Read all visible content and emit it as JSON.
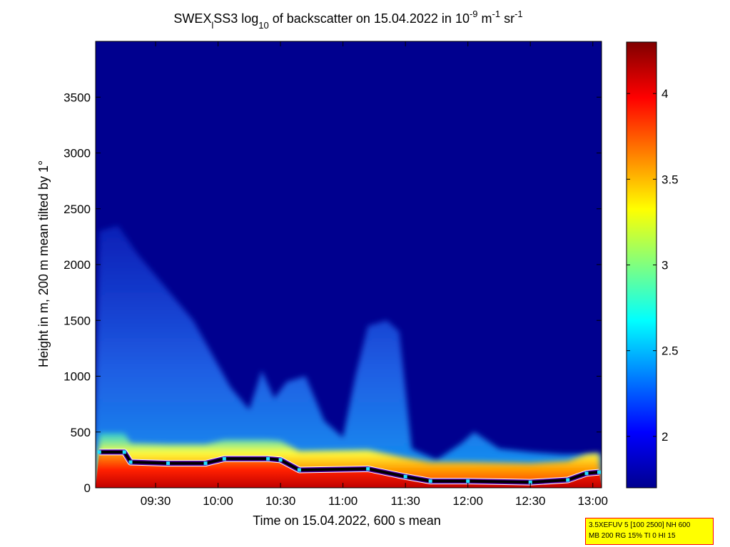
{
  "chart_data": {
    "type": "heatmap",
    "title": {
      "prefix": "SWEX",
      "sub_l": "l",
      "mid": "SS3 log",
      "sub_10": "10",
      "mid2": " of backscatter on 15.04.2022 in 10",
      "sup_9": "-9",
      "unit_m": " m",
      "sup_m": "-1",
      "unit_sr": " sr",
      "sup_sr": "-1"
    },
    "xlabel": "Time on 15.04.2022, 600 s mean",
    "ylabel": "Height in m, 200 m mean tilted by 1°",
    "x_range_hours": [
      9.02,
      13.07
    ],
    "ylim": [
      0,
      4000
    ],
    "x_ticks": [
      {
        "value": 9.5,
        "label": "09:30"
      },
      {
        "value": 10.0,
        "label": "10:00"
      },
      {
        "value": 10.5,
        "label": "10:30"
      },
      {
        "value": 11.0,
        "label": "11:00"
      },
      {
        "value": 11.5,
        "label": "11:30"
      },
      {
        "value": 12.0,
        "label": "12:00"
      },
      {
        "value": 12.5,
        "label": "12:30"
      },
      {
        "value": 13.0,
        "label": "13:00"
      }
    ],
    "y_ticks": [
      {
        "value": 0,
        "label": "0"
      },
      {
        "value": 500,
        "label": "500"
      },
      {
        "value": 1000,
        "label": "1000"
      },
      {
        "value": 1500,
        "label": "1500"
      },
      {
        "value": 2000,
        "label": "2000"
      },
      {
        "value": 2500,
        "label": "2500"
      },
      {
        "value": 3000,
        "label": "3000"
      },
      {
        "value": 3500,
        "label": "3500"
      }
    ],
    "colorbar": {
      "range": [
        1.7,
        4.3
      ],
      "colormap": "jet",
      "ticks": [
        {
          "value": 2,
          "label": "2"
        },
        {
          "value": 2.5,
          "label": "2.5"
        },
        {
          "value": 3,
          "label": "3"
        },
        {
          "value": 3.5,
          "label": "3.5"
        },
        {
          "value": 4,
          "label": "4"
        }
      ]
    },
    "layer_top_height_m": [
      [
        9.05,
        2300
      ],
      [
        9.2,
        2350
      ],
      [
        9.35,
        2100
      ],
      [
        9.5,
        1900
      ],
      [
        9.65,
        1700
      ],
      [
        9.8,
        1500
      ],
      [
        9.95,
        1200
      ],
      [
        10.1,
        900
      ],
      [
        10.25,
        700
      ],
      [
        10.35,
        1050
      ],
      [
        10.45,
        800
      ],
      [
        10.55,
        950
      ],
      [
        10.7,
        1000
      ],
      [
        10.85,
        600
      ],
      [
        11.0,
        450
      ],
      [
        11.1,
        1000
      ],
      [
        11.2,
        1450
      ],
      [
        11.35,
        1500
      ],
      [
        11.45,
        1400
      ],
      [
        11.55,
        350
      ],
      [
        11.75,
        250
      ],
      [
        11.95,
        400
      ],
      [
        12.05,
        500
      ],
      [
        12.25,
        350
      ],
      [
        12.5,
        320
      ],
      [
        12.75,
        300
      ],
      [
        13.05,
        300
      ]
    ],
    "cloud_base_height_m": [
      [
        9.05,
        320
      ],
      [
        9.25,
        320
      ],
      [
        9.3,
        230
      ],
      [
        9.6,
        220
      ],
      [
        9.9,
        220
      ],
      [
        10.05,
        260
      ],
      [
        10.4,
        260
      ],
      [
        10.5,
        250
      ],
      [
        10.65,
        160
      ],
      [
        11.2,
        170
      ],
      [
        11.5,
        100
      ],
      [
        11.7,
        60
      ],
      [
        12.0,
        60
      ],
      [
        12.5,
        50
      ],
      [
        12.8,
        70
      ],
      [
        12.95,
        130
      ],
      [
        13.05,
        140
      ]
    ],
    "info_box": {
      "line1": "3.5XEFUV 5 [100 2500] NH 600",
      "line2": "MB 200 RG 15% TI 0 HI 15"
    }
  }
}
